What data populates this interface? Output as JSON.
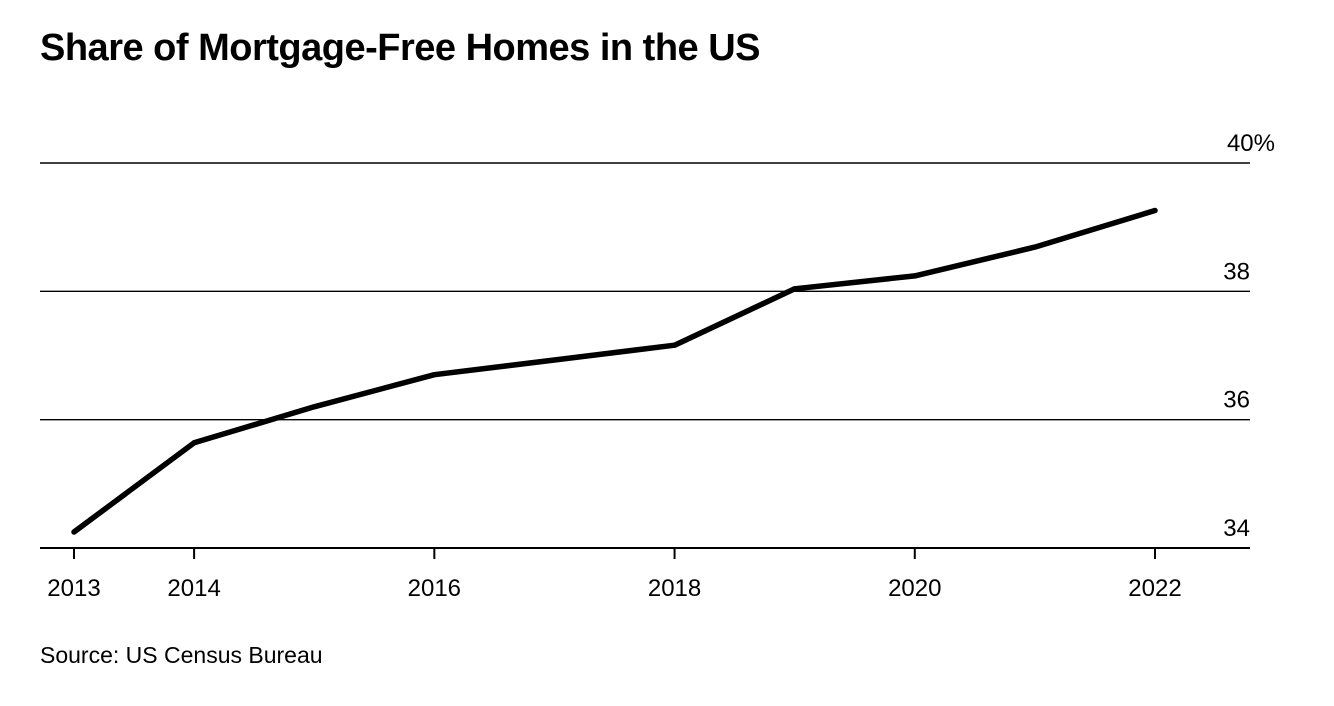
{
  "chart_data": {
    "type": "line",
    "title": "Share of Mortgage-Free Homes in the US",
    "source": "Source: US Census Bureau",
    "xlabel": "",
    "ylabel": "",
    "x": [
      2013,
      2014,
      2015,
      2016,
      2017,
      2018,
      2019,
      2020,
      2021,
      2022
    ],
    "series": [
      {
        "values": [
          34.25,
          35.64,
          36.2,
          36.7,
          36.93,
          37.16,
          38.04,
          38.24,
          38.69,
          39.26
        ]
      }
    ],
    "xlim": [
      2012.7,
      2022.8
    ],
    "ylim": [
      34,
      40
    ],
    "x_ticks": [
      2013,
      2014,
      2016,
      2018,
      2020,
      2022
    ],
    "x_tick_labels": [
      "2013",
      "2014",
      "2016",
      "2018",
      "2020",
      "2022"
    ],
    "y_ticks": [
      34,
      36,
      38,
      40
    ],
    "y_tick_labels": [
      "34",
      "36",
      "38",
      "40%"
    ],
    "grid": "horizontal",
    "y_axis_side": "right",
    "line_color": "#000000",
    "gridline_color": "#000000"
  }
}
